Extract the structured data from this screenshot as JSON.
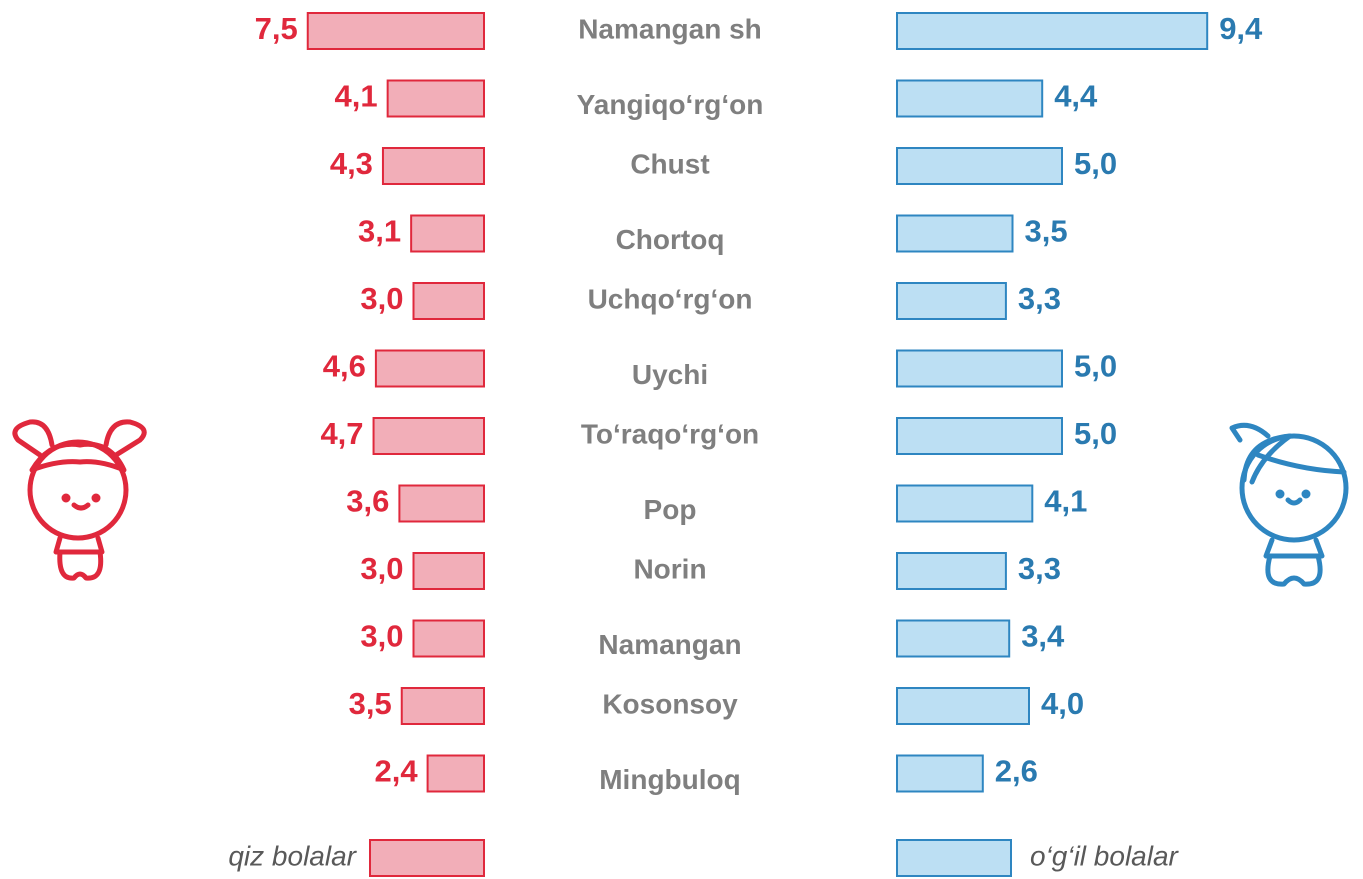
{
  "chart_data": {
    "type": "butterfly-bar",
    "categories": [
      "Namangan sh",
      "Yangiqo‘rg‘on",
      "Chust",
      "Chortoq",
      "Uchqo‘rg‘on",
      "Uychi",
      "To‘raqo‘rg‘on",
      "Pop",
      "Norin",
      "Namangan",
      "Kosonsoy",
      "Mingbuloq"
    ],
    "series": [
      {
        "name": "qiz bolalar",
        "color": "#f2aeb8",
        "edge": "#e0283c",
        "label_color": "#e0283c",
        "values": [
          7.5,
          4.1,
          4.3,
          3.1,
          3.0,
          4.6,
          4.7,
          3.6,
          3.0,
          3.0,
          3.5,
          2.4
        ],
        "value_labels": [
          "7,5",
          "4,1",
          "4,3",
          "3,1",
          "3,0",
          "4,6",
          "4,7",
          "3,6",
          "3,0",
          "3,0",
          "3,5",
          "2,4"
        ]
      },
      {
        "name": "o‘g‘il bolalar",
        "color": "#bcdff3",
        "edge": "#2e86c1",
        "label_color": "#2a7ab0",
        "values": [
          9.4,
          4.4,
          5.0,
          3.5,
          3.3,
          5.0,
          5.0,
          4.1,
          3.3,
          3.4,
          4.0,
          2.6
        ],
        "value_labels": [
          "9,4",
          "4,4",
          "5,0",
          "3,5",
          "3,3",
          "5,0",
          "5,0",
          "4,1",
          "3,3",
          "3,4",
          "4,0",
          "2,6"
        ]
      }
    ]
  }
}
